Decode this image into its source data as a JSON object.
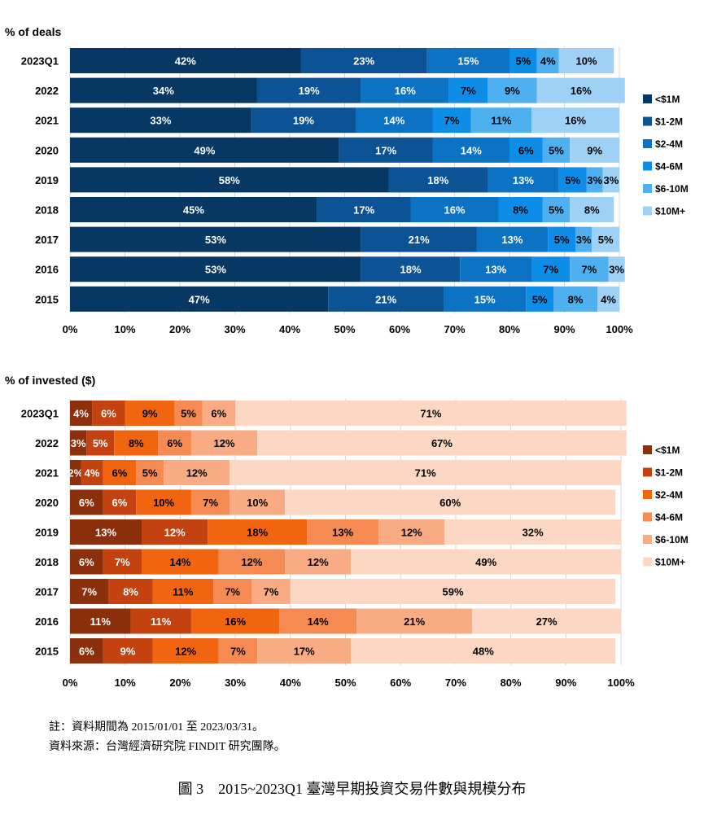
{
  "chart_data": [
    {
      "type": "bar",
      "orientation": "horizontal",
      "stacked": true,
      "title": "% of deals",
      "categories": [
        "2023Q1",
        "2022",
        "2021",
        "2020",
        "2019",
        "2018",
        "2017",
        "2016",
        "2015"
      ],
      "x_ticks": [
        "0%",
        "10%",
        "20%",
        "30%",
        "40%",
        "50%",
        "60%",
        "70%",
        "80%",
        "90%",
        "100%"
      ],
      "xlim": [
        0,
        100
      ],
      "legend_position": "right",
      "series": [
        {
          "name": "<$1M",
          "color": "#073763",
          "values": [
            42,
            34,
            33,
            49,
            58,
            45,
            53,
            53,
            47
          ]
        },
        {
          "name": "$1-2M",
          "color": "#0b5394",
          "values": [
            23,
            19,
            19,
            17,
            18,
            17,
            21,
            18,
            21
          ]
        },
        {
          "name": "$2-4M",
          "color": "#0b72c4",
          "values": [
            15,
            16,
            14,
            14,
            13,
            16,
            13,
            13,
            15
          ]
        },
        {
          "name": "$4-6M",
          "color": "#0d8de8",
          "values": [
            5,
            7,
            7,
            6,
            5,
            8,
            5,
            7,
            5
          ]
        },
        {
          "name": "$6-10M",
          "color": "#4fb0f0",
          "values": [
            4,
            9,
            11,
            5,
            3,
            5,
            3,
            7,
            8
          ]
        },
        {
          "name": "$10M+",
          "color": "#9fd1f7",
          "values": [
            10,
            16,
            16,
            9,
            3,
            8,
            5,
            3,
            4
          ]
        }
      ],
      "label_colors": [
        "#ffffff",
        "#ffffff",
        "#ffffff",
        "#000000",
        "#000000",
        "#000000"
      ]
    },
    {
      "type": "bar",
      "orientation": "horizontal",
      "stacked": true,
      "title": "% of invested ($)",
      "categories": [
        "2023Q1",
        "2022",
        "2021",
        "2020",
        "2019",
        "2018",
        "2017",
        "2016",
        "2015"
      ],
      "x_ticks": [
        "0%",
        "10%",
        "20%",
        "30%",
        "40%",
        "50%",
        "60%",
        "70%",
        "80%",
        "90%",
        "100%"
      ],
      "xlim": [
        0,
        100
      ],
      "legend_position": "right",
      "series": [
        {
          "name": "<$1M",
          "color": "#8b2f0c",
          "values": [
            4,
            3,
            2,
            6,
            13,
            6,
            7,
            11,
            6
          ]
        },
        {
          "name": "$1-2M",
          "color": "#c4420f",
          "values": [
            6,
            5,
            4,
            6,
            12,
            7,
            8,
            11,
            9
          ]
        },
        {
          "name": "$2-4M",
          "color": "#f26510",
          "values": [
            9,
            8,
            6,
            10,
            18,
            14,
            11,
            16,
            12
          ]
        },
        {
          "name": "$4-6M",
          "color": "#f58a53",
          "values": [
            5,
            6,
            5,
            7,
            13,
            12,
            7,
            14,
            7
          ]
        },
        {
          "name": "$6-10M",
          "color": "#f9ac84",
          "values": [
            6,
            12,
            12,
            10,
            12,
            12,
            7,
            21,
            17
          ]
        },
        {
          "name": "$10M+",
          "color": "#fcd8c4",
          "values": [
            71,
            67,
            71,
            60,
            32,
            49,
            59,
            27,
            48
          ]
        }
      ],
      "label_colors": [
        "#ffffff",
        "#ffffff",
        "#000000",
        "#000000",
        "#000000",
        "#000000"
      ]
    }
  ],
  "notes": {
    "line1": "註：資料期間為 2015/01/01 至 2023/03/31。",
    "line2": "資料來源：台灣經濟研究院 FINDIT 研究團隊。"
  },
  "caption": "圖 3　2015~2023Q1 臺灣早期投資交易件數與規模分布"
}
